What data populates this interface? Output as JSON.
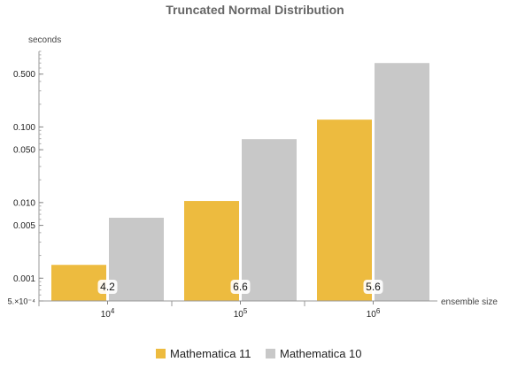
{
  "chart_data": {
    "type": "bar",
    "title": "Truncated Normal Distribution",
    "xlabel": "ensemble size",
    "ylabel": "seconds",
    "yscale": "log",
    "ylim": [
      0.0005,
      1.0
    ],
    "yticks": [
      {
        "value": 0.0005,
        "label": "5.×10⁻⁴"
      },
      {
        "value": 0.001,
        "label": "0.001"
      },
      {
        "value": 0.005,
        "label": "0.005"
      },
      {
        "value": 0.01,
        "label": "0.010"
      },
      {
        "value": 0.05,
        "label": "0.050"
      },
      {
        "value": 0.1,
        "label": "0.100"
      },
      {
        "value": 0.5,
        "label": "0.500"
      }
    ],
    "categories": [
      {
        "base": "10",
        "exp": "4"
      },
      {
        "base": "10",
        "exp": "5"
      },
      {
        "base": "10",
        "exp": "6"
      }
    ],
    "series": [
      {
        "name": "Mathematica 11",
        "color": "#EDBB3F",
        "values": [
          0.0015,
          0.0105,
          0.125
        ]
      },
      {
        "name": "Mathematica 10",
        "color": "#C8C8C8",
        "values": [
          0.0063,
          0.069,
          0.7
        ]
      }
    ],
    "annotations": [
      "4.2",
      "6.6",
      "5.6"
    ],
    "legend_position": "bottom"
  }
}
